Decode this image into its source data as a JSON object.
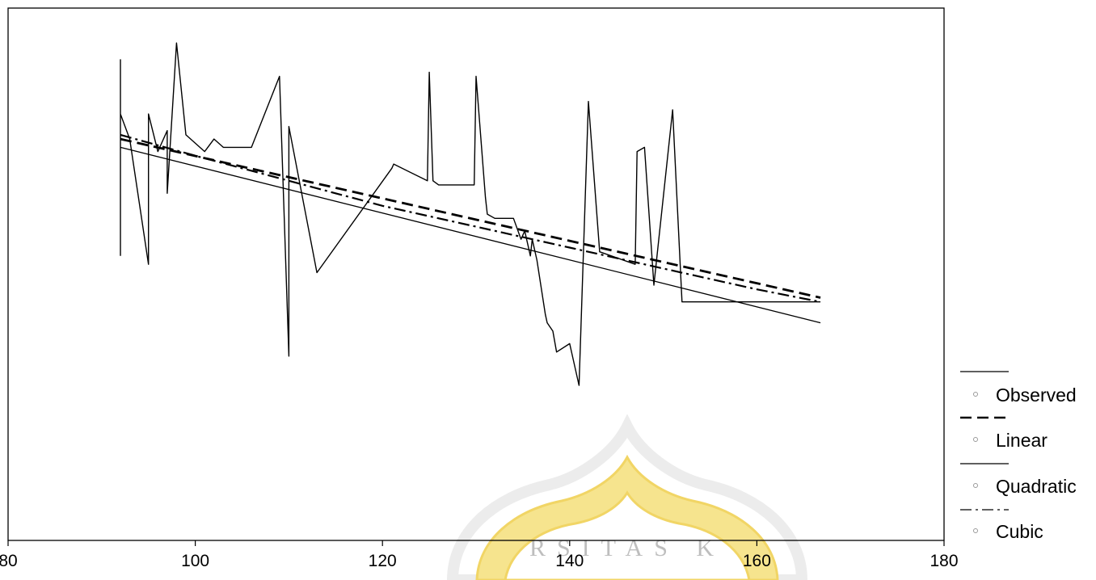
{
  "chart_data": {
    "type": "line",
    "title": "",
    "xlabel": "",
    "ylabel": "",
    "xlim": [
      80,
      180
    ],
    "ylim": [
      0,
      1
    ],
    "x_ticks": [
      80,
      100,
      120,
      140,
      160,
      180
    ],
    "x_tick_labels": [
      "80",
      "100",
      "120",
      "140",
      "160",
      "180"
    ],
    "y_ticks": [],
    "grid": false,
    "legend_position": "bottom-right, outside plot",
    "series": [
      {
        "name": "Observed",
        "style": "solid",
        "x": [
          92,
          92,
          92,
          93,
          95,
          95,
          96,
          97,
          97,
          98,
          99,
          101,
          102,
          103,
          106,
          109,
          110,
          110,
          113,
          121,
          121.2,
          124.8,
          125,
          125.4,
          126,
          129.8,
          130,
          131,
          131.2,
          132,
          134,
          134.8,
          135.2,
          135.8,
          136,
          136.5,
          137.4,
          137.6,
          138.2,
          138.6,
          140,
          141,
          142,
          143.2,
          147,
          147.2,
          148,
          149,
          151,
          152,
          166.8
        ],
        "y": [
          0.48,
          0.95,
          0.82,
          0.76,
          0.46,
          0.82,
          0.73,
          0.78,
          0.63,
          0.99,
          0.77,
          0.73,
          0.76,
          0.74,
          0.74,
          0.91,
          0.24,
          0.79,
          0.44,
          0.69,
          0.7,
          0.66,
          0.92,
          0.66,
          0.65,
          0.65,
          0.91,
          0.62,
          0.58,
          0.57,
          0.57,
          0.52,
          0.54,
          0.48,
          0.52,
          0.47,
          0.34,
          0.32,
          0.3,
          0.25,
          0.27,
          0.17,
          0.85,
          0.49,
          0.46,
          0.73,
          0.74,
          0.41,
          0.83,
          0.37,
          0.37
        ]
      },
      {
        "name": "Linear",
        "style": "dashed",
        "x": [
          92,
          166.8
        ],
        "y": [
          0.76,
          0.38
        ]
      },
      {
        "name": "Quadratic",
        "style": "solid",
        "x": [
          92,
          166.8
        ],
        "y": [
          0.74,
          0.32
        ]
      },
      {
        "name": "Cubic",
        "style": "dash-dot",
        "x": [
          92,
          100,
          110,
          120,
          130,
          140,
          150,
          160,
          166.8
        ],
        "y": [
          0.77,
          0.72,
          0.66,
          0.6,
          0.55,
          0.5,
          0.45,
          0.4,
          0.37
        ]
      }
    ]
  },
  "legend": {
    "items": [
      {
        "label": "Observed",
        "icon": "circle-marker-icon"
      },
      {
        "label": "Linear",
        "icon": "circle-marker-icon"
      },
      {
        "label": "Quadratic",
        "icon": "circle-marker-icon"
      },
      {
        "label": "Cubic",
        "icon": "circle-marker-icon"
      }
    ]
  },
  "colors": {
    "line": "#000000",
    "watermark": "#f4e08a",
    "watermark_outline": "#e8e8e8"
  },
  "watermark": {
    "text": "RSITAS K"
  }
}
